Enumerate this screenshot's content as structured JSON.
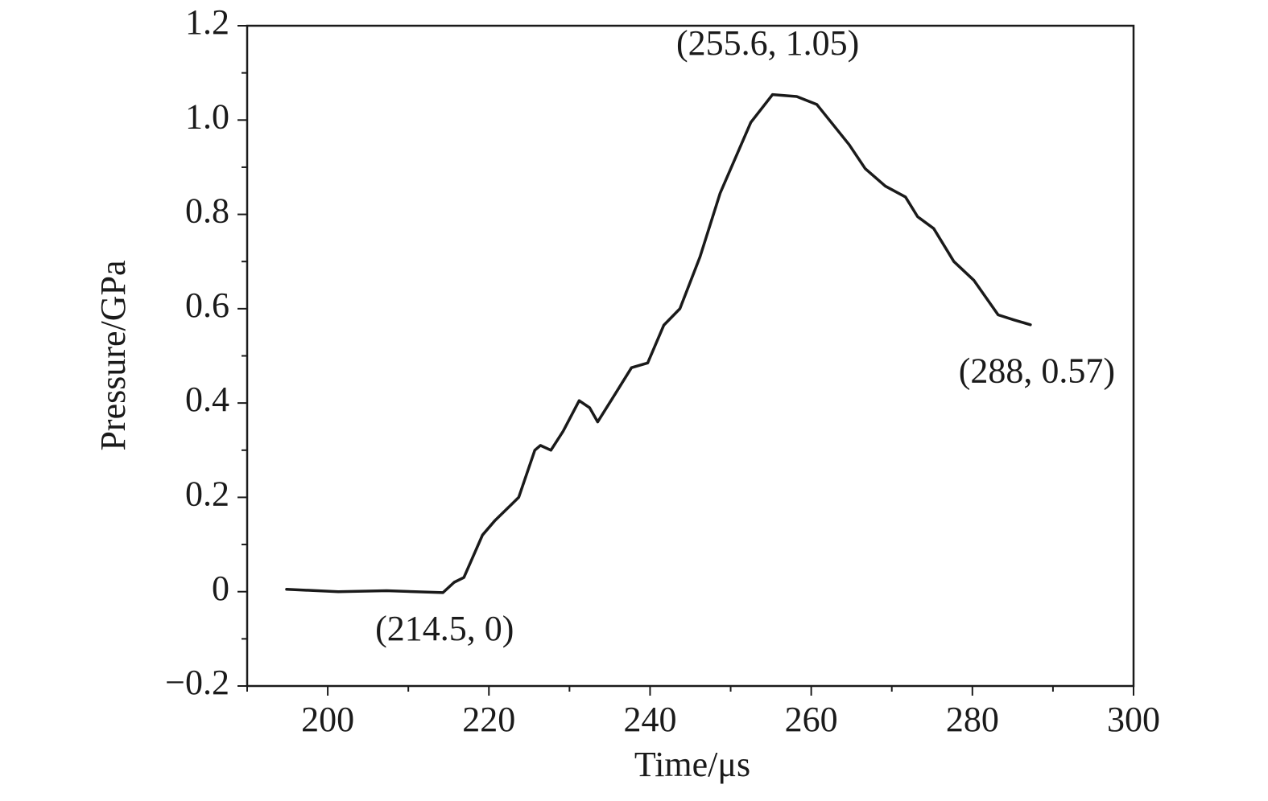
{
  "chart_data": {
    "type": "line",
    "x_label": "Time/μs",
    "y_label": "Pressure/GPa",
    "xlim": [
      190,
      300
    ],
    "ylim": [
      -0.2,
      1.2
    ],
    "xticks": [
      200,
      220,
      240,
      260,
      280,
      300
    ],
    "x_minor_ticks": [
      190,
      210,
      230,
      250,
      270,
      290
    ],
    "yticks": [
      {
        "value": -0.2,
        "label": "−0.2"
      },
      0,
      0.2,
      0.4,
      0.6,
      0.8,
      {
        "value": 1,
        "label": "1.0"
      },
      1.2
    ],
    "y_minor_ticks": [
      -0.1,
      0.1,
      0.3,
      0.5,
      0.7,
      0.9,
      1.1
    ],
    "series": [
      {
        "color": "#1a1a1a",
        "x": [
          194.9,
          201.3,
          207.3,
          214.3,
          215.7,
          216.9,
          219.2,
          220.7,
          223.7,
          225.7,
          226.4,
          227.7,
          229.2,
          231.2,
          232.5,
          233.5,
          235.7,
          237.7,
          239.7,
          241.7,
          243.7,
          246.2,
          248.7,
          252.5,
          255.2,
          258.2,
          260.7,
          264.7,
          266.7,
          269.2,
          271.7,
          273.2,
          275.2,
          277.7,
          280.2,
          283.2,
          285.2,
          287.2
        ],
        "values": [
          0.005,
          0,
          0.002,
          -0.002,
          0.02,
          0.03,
          0.12,
          0.15,
          0.2,
          0.3,
          0.31,
          0.3,
          0.34,
          0.405,
          0.39,
          0.36,
          0.42,
          0.475,
          0.485,
          0.565,
          0.6,
          0.71,
          0.845,
          0.995,
          1.054,
          1.05,
          1.033,
          0.948,
          0.897,
          0.86,
          0.837,
          0.795,
          0.77,
          0.7,
          0.66,
          0.587,
          0.576,
          0.566
        ]
      }
    ],
    "annotations": [
      {
        "text": "(214.5, 0)",
        "x": 214.5,
        "y": 0
      },
      {
        "text": "(255.6, 1.05)",
        "x": 255.6,
        "y": 1.05
      },
      {
        "text": "(288, 0.57)",
        "x": 288,
        "y": 0.57
      }
    ]
  }
}
